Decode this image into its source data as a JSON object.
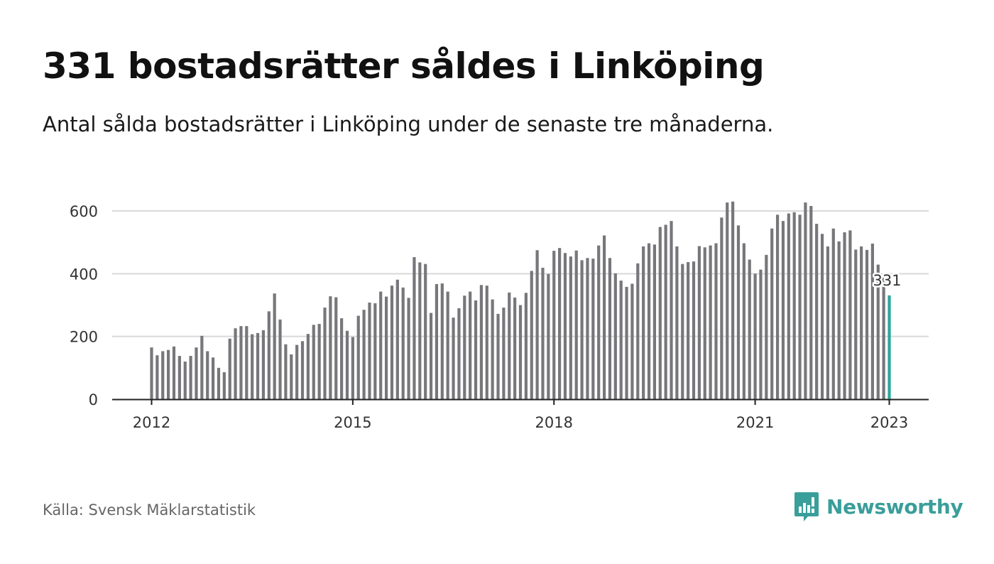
{
  "header": {
    "title": "331 bostadsrätter såldes i Linköping",
    "subtitle": "Antal sålda bostadsrätter i Linköping under de senaste tre månaderna."
  },
  "footer": {
    "source": "Källa: Svensk Mäklarstatistik",
    "brand": "Newsworthy",
    "brand_color": "#3a9e9a"
  },
  "colors": {
    "bar": "#77777b",
    "highlight": "#2aa79b",
    "grid": "#d9d9d9",
    "axis": "#222222"
  },
  "chart_data": {
    "type": "bar",
    "title": "331 bostadsrätter såldes i Linköping",
    "subtitle": "Antal sålda bostadsrätter i Linköping under de senaste tre månaderna.",
    "xlabel": "",
    "ylabel": "",
    "x_start": "2012-01",
    "x_ticks": [
      "2012",
      "2015",
      "2018",
      "2021",
      "2023"
    ],
    "y_ticks": [
      0,
      200,
      400,
      600
    ],
    "ylim": [
      0,
      650
    ],
    "grid": true,
    "highlight_label": "331",
    "values": [
      165,
      140,
      153,
      157,
      168,
      138,
      120,
      138,
      165,
      202,
      153,
      133,
      100,
      86,
      193,
      226,
      233,
      233,
      207,
      211,
      220,
      280,
      337,
      254,
      175,
      143,
      173,
      185,
      208,
      237,
      240,
      292,
      328,
      325,
      258,
      218,
      198,
      266,
      285,
      308,
      306,
      343,
      327,
      362,
      381,
      356,
      323,
      453,
      436,
      431,
      275,
      367,
      369,
      343,
      260,
      290,
      330,
      343,
      315,
      364,
      362,
      318,
      272,
      292,
      340,
      324,
      300,
      339,
      409,
      475,
      419,
      399,
      473,
      482,
      466,
      455,
      474,
      443,
      450,
      448,
      490,
      522,
      450,
      401,
      378,
      358,
      368,
      433,
      487,
      497,
      493,
      549,
      556,
      568,
      487,
      431,
      437,
      439,
      488,
      484,
      490,
      497,
      579,
      627,
      630,
      554,
      497,
      445,
      400,
      413,
      460,
      544,
      588,
      568,
      592,
      596,
      588,
      627,
      616,
      559,
      527,
      487,
      544,
      503,
      532,
      538,
      477,
      487,
      476,
      496,
      429,
      400,
      331
    ]
  }
}
